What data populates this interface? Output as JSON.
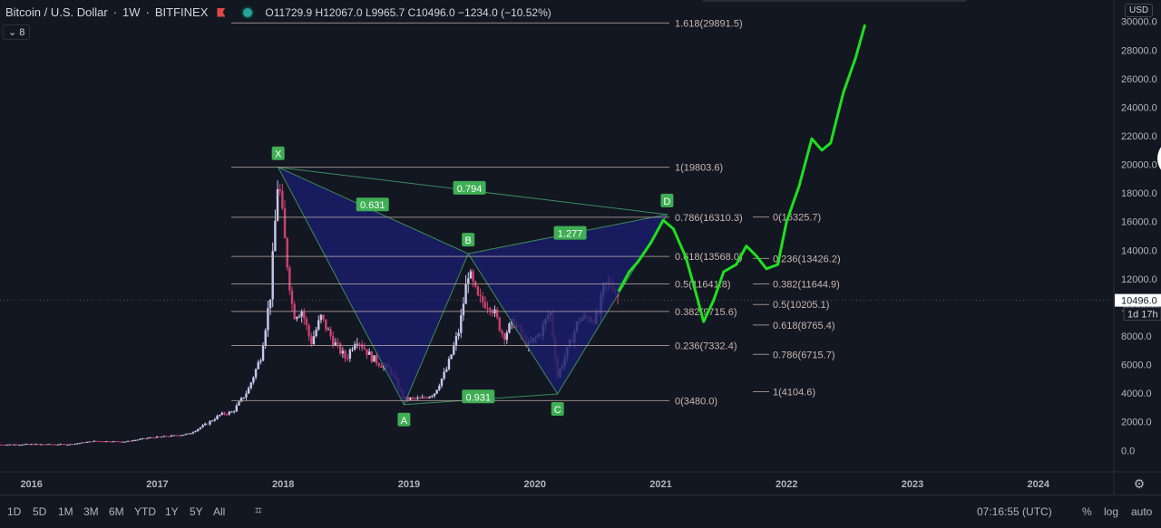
{
  "header": {
    "symbol": "Bitcoin / U.S. Dollar",
    "interval": "1W",
    "exchange": "BITFINEX",
    "ohlc": "O11729.9 H12067.0 L9965.7 C10496.0 −1234.0 (−10.52%)",
    "indicator_count": "8"
  },
  "axis": {
    "currency_label": "USD",
    "price_ticks": [
      "30000.0",
      "28000.0",
      "26000.0",
      "24000.0",
      "22000.0",
      "20000.0",
      "18000.0",
      "16000.0",
      "14000.0",
      "12000.0",
      "10000.0",
      "8000.0",
      "6000.0",
      "4000.0",
      "2000.0",
      "0.0"
    ],
    "year_ticks": [
      "2016",
      "2017",
      "2018",
      "2019",
      "2020",
      "2021",
      "2022",
      "2023",
      "2024"
    ],
    "last_price": "10496.0",
    "countdown": "1d 17h"
  },
  "colors": {
    "background": "#131722",
    "pattern_fill": "#1a1d6b",
    "pattern_stroke": "#3c8c5a",
    "label_green": "#3fae54",
    "projection": "#1fe01f",
    "fib_line": "#b8a7a0",
    "candle_up": "#c8c8f0",
    "candle_down": "#d04070"
  },
  "chart_data": {
    "type": "line",
    "title": "Bitcoin / U.S. Dollar 1W BITFINEX",
    "ylim": [
      -1500,
      31500
    ],
    "xlim": [
      2015.75,
      2024.6
    ],
    "pattern_points": [
      {
        "label": "X",
        "x": 2017.96,
        "y": 19800
      },
      {
        "label": "A",
        "x": 2018.96,
        "y": 3200
      },
      {
        "label": "B",
        "x": 2019.47,
        "y": 13760
      },
      {
        "label": "C",
        "x": 2020.18,
        "y": 3950
      },
      {
        "label": "D",
        "x": 2021.05,
        "y": 16500
      }
    ],
    "pattern_ratios": [
      {
        "label": "0.631",
        "x": 2018.71,
        "y": 17170
      },
      {
        "label": "0.794",
        "x": 2019.48,
        "y": 18330
      },
      {
        "label": "1.277",
        "x": 2020.28,
        "y": 15180
      },
      {
        "label": "0.931",
        "x": 2019.55,
        "y": 3740
      }
    ],
    "fib_levels_left": [
      {
        "label": "1.618(29891.5)",
        "y": 29891.5
      },
      {
        "label": "1(19803.6)",
        "y": 19803.6
      },
      {
        "label": "0.786(16310.3)",
        "y": 16310.3
      },
      {
        "label": "0.618(13568.0)",
        "y": 13568.0
      },
      {
        "label": "0.5(11641.8)",
        "y": 11641.8
      },
      {
        "label": "0.382(9715.6)",
        "y": 9715.6
      },
      {
        "label": "0.236(7332.4)",
        "y": 7332.4
      },
      {
        "label": "0(3480.0)",
        "y": 3480.0
      }
    ],
    "fib_levels_right": [
      {
        "label": "0(16325.7)",
        "y": 16325.7
      },
      {
        "label": "0.236(13426.2)",
        "y": 13426.2
      },
      {
        "label": "0.382(11644.9)",
        "y": 11644.9
      },
      {
        "label": "0.5(10205.1)",
        "y": 10205.1
      },
      {
        "label": "0.618(8765.4)",
        "y": 8765.4
      },
      {
        "label": "0.786(6715.7)",
        "y": 6715.7
      },
      {
        "label": "1(4104.6)",
        "y": 4104.6
      }
    ],
    "price_path": [
      [
        2015.75,
        400
      ],
      [
        2016.0,
        430
      ],
      [
        2016.3,
        420
      ],
      [
        2016.5,
        650
      ],
      [
        2016.75,
        620
      ],
      [
        2016.95,
        900
      ],
      [
        2017.1,
        1000
      ],
      [
        2017.25,
        1150
      ],
      [
        2017.4,
        1900
      ],
      [
        2017.5,
        2500
      ],
      [
        2017.6,
        2700
      ],
      [
        2017.72,
        4200
      ],
      [
        2017.82,
        6500
      ],
      [
        2017.9,
        11000
      ],
      [
        2017.96,
        19200
      ],
      [
        2018.02,
        14000
      ],
      [
        2018.08,
        9500
      ],
      [
        2018.15,
        9800
      ],
      [
        2018.22,
        7500
      ],
      [
        2018.3,
        9300
      ],
      [
        2018.4,
        7600
      ],
      [
        2018.5,
        6400
      ],
      [
        2018.58,
        7900
      ],
      [
        2018.7,
        6500
      ],
      [
        2018.85,
        5600
      ],
      [
        2018.96,
        3600
      ],
      [
        2019.1,
        3600
      ],
      [
        2019.2,
        4000
      ],
      [
        2019.3,
        5700
      ],
      [
        2019.4,
        8500
      ],
      [
        2019.47,
        12500
      ],
      [
        2019.55,
        10500
      ],
      [
        2019.65,
        10200
      ],
      [
        2019.75,
        8000
      ],
      [
        2019.83,
        9000
      ],
      [
        2019.95,
        7300
      ],
      [
        2020.05,
        8300
      ],
      [
        2020.12,
        9800
      ],
      [
        2020.18,
        5200
      ],
      [
        2020.25,
        6800
      ],
      [
        2020.35,
        9200
      ],
      [
        2020.5,
        9300
      ],
      [
        2020.55,
        11500
      ],
      [
        2020.62,
        11700
      ],
      [
        2020.67,
        10496
      ]
    ],
    "projection_path": [
      [
        2020.67,
        11200
      ],
      [
        2020.75,
        12500
      ],
      [
        2020.82,
        13200
      ],
      [
        2020.92,
        14500
      ],
      [
        2021.02,
        16100
      ],
      [
        2021.1,
        15500
      ],
      [
        2021.2,
        13500
      ],
      [
        2021.28,
        11000
      ],
      [
        2021.34,
        9000
      ],
      [
        2021.42,
        10500
      ],
      [
        2021.5,
        12500
      ],
      [
        2021.6,
        13000
      ],
      [
        2021.68,
        14300
      ],
      [
        2021.76,
        13600
      ],
      [
        2021.84,
        12700
      ],
      [
        2021.93,
        13000
      ],
      [
        2022.0,
        16000
      ],
      [
        2022.1,
        18500
      ],
      [
        2022.2,
        21800
      ],
      [
        2022.28,
        21000
      ],
      [
        2022.35,
        21500
      ],
      [
        2022.45,
        25000
      ],
      [
        2022.55,
        27500
      ],
      [
        2022.62,
        29700
      ]
    ]
  },
  "bottom": {
    "timeframes": [
      "1D",
      "5D",
      "1M",
      "3M",
      "6M",
      "YTD",
      "1Y",
      "5Y",
      "All"
    ],
    "clock": "07:16:55 (UTC)",
    "percent": "%",
    "log": "log",
    "auto": "auto"
  }
}
